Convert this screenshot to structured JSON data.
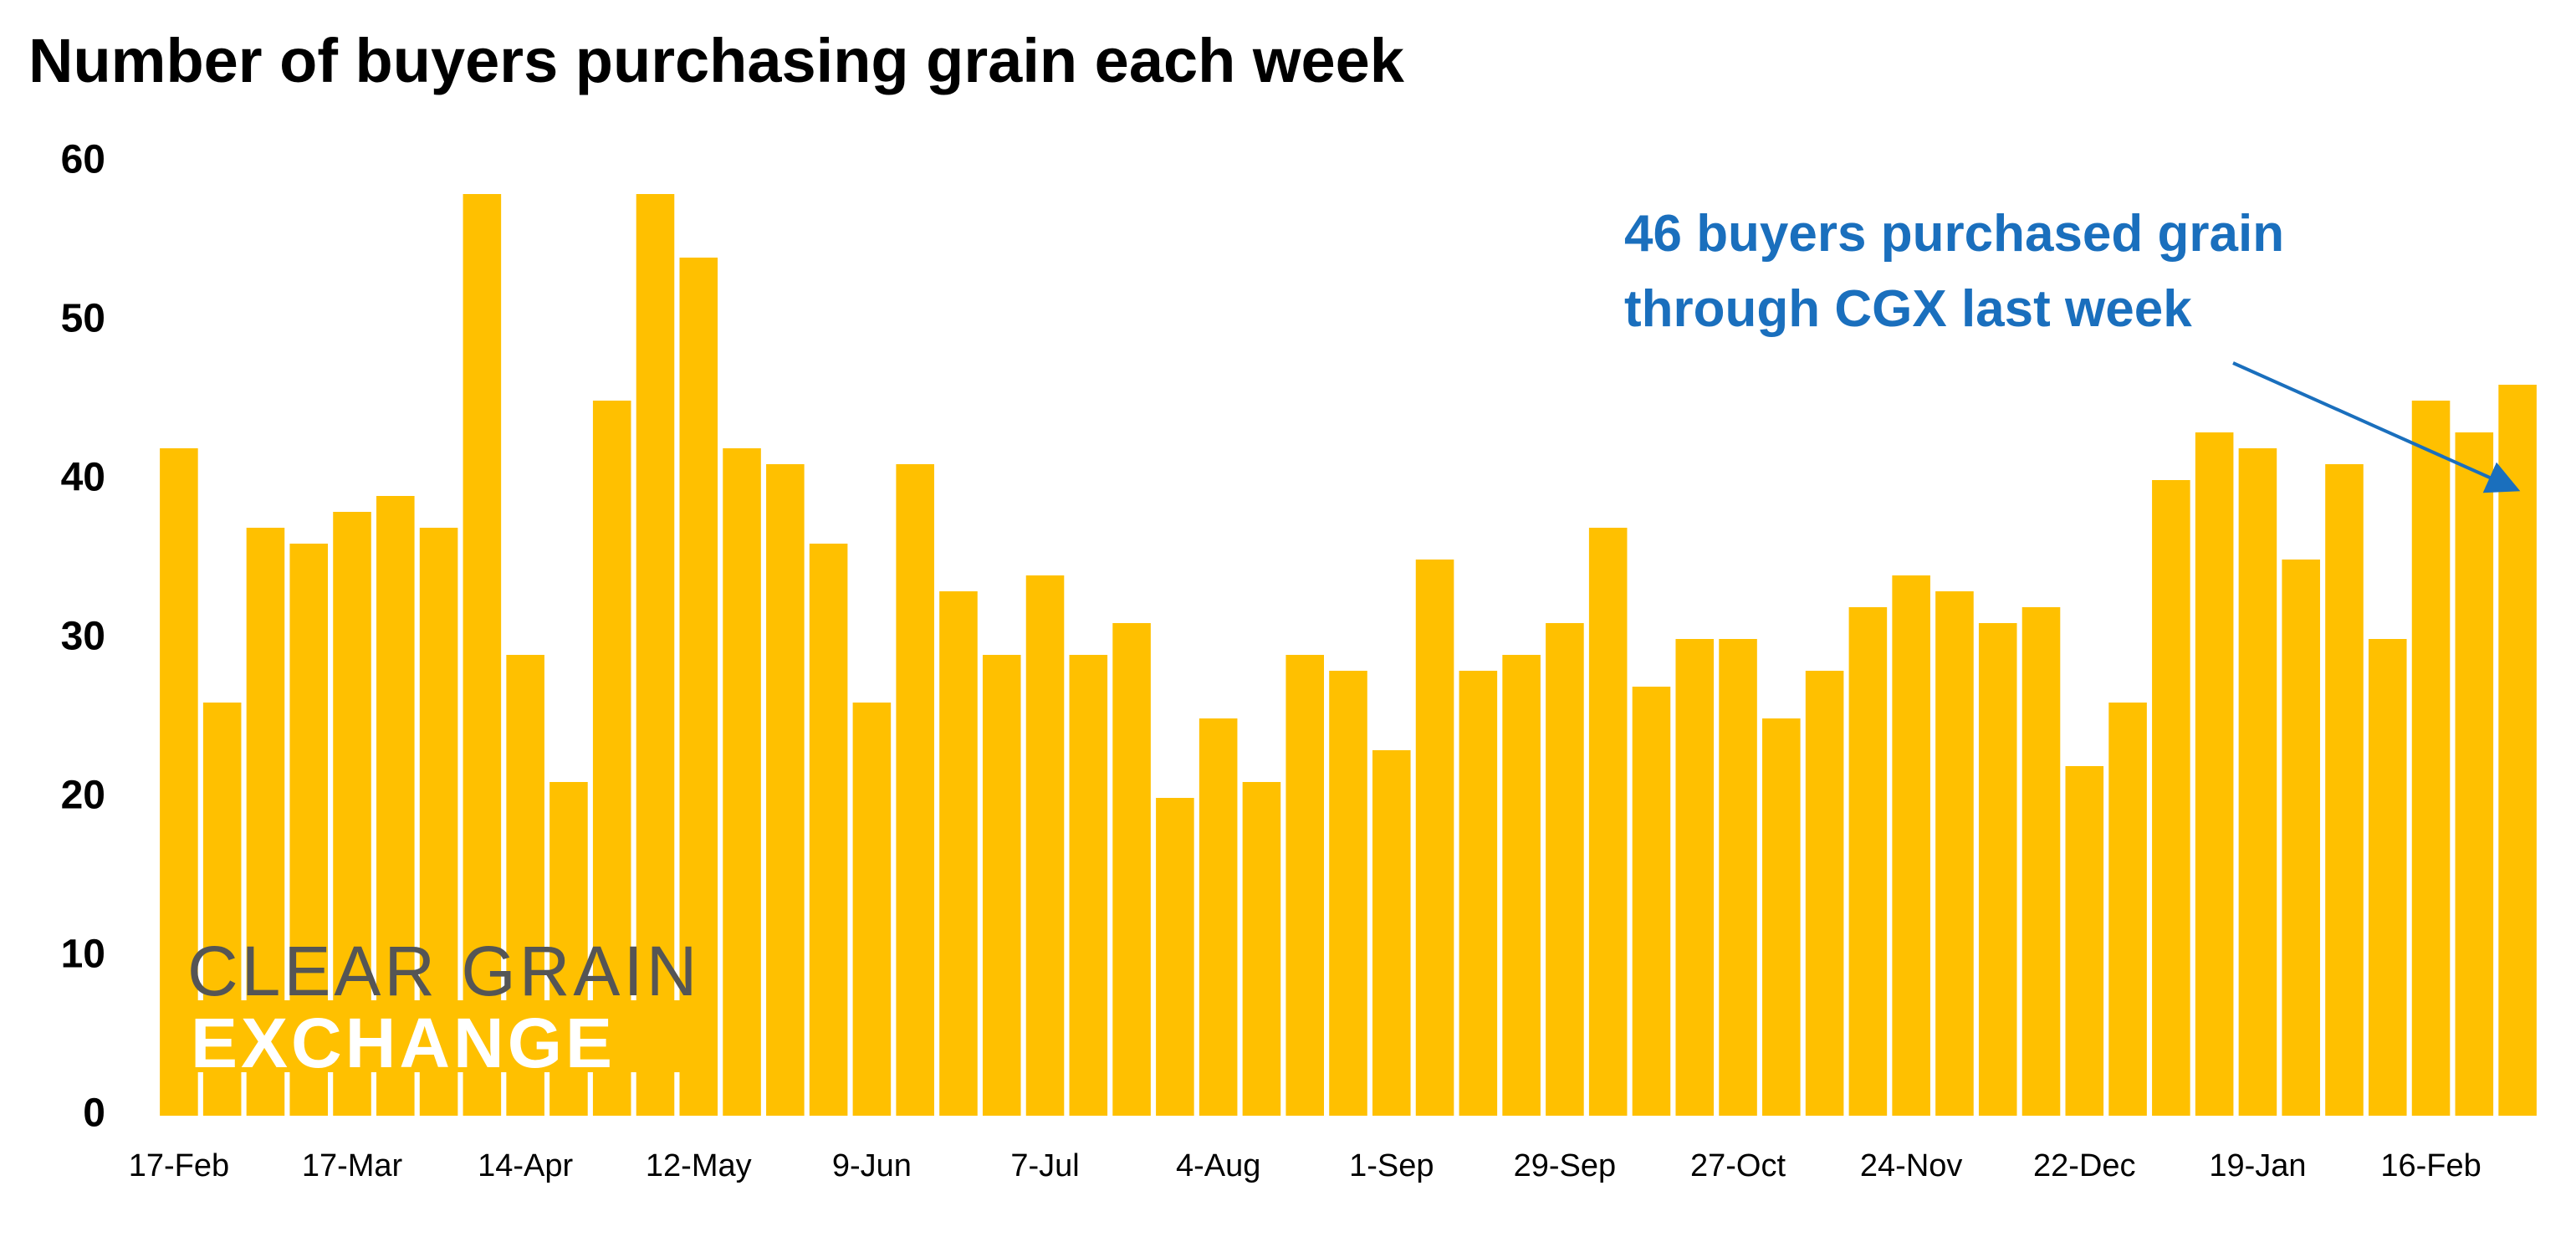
{
  "chart_data": {
    "type": "bar",
    "title": "Number of buyers purchasing grain each week",
    "categories": [
      "17-Feb",
      null,
      null,
      null,
      "17-Mar",
      null,
      null,
      null,
      "14-Apr",
      null,
      null,
      null,
      "12-May",
      null,
      null,
      null,
      "9-Jun",
      null,
      null,
      null,
      "7-Jul",
      null,
      null,
      null,
      "4-Aug",
      null,
      null,
      null,
      "1-Sep",
      null,
      null,
      null,
      "29-Sep",
      null,
      null,
      null,
      "27-Oct",
      null,
      null,
      null,
      "24-Nov",
      null,
      null,
      null,
      "22-Dec",
      null,
      null,
      null,
      "19-Jan",
      null,
      null,
      null,
      "16-Feb",
      null,
      null
    ],
    "values": [
      42,
      26,
      37,
      36,
      38,
      39,
      37,
      58,
      29,
      21,
      45,
      58,
      54,
      42,
      41,
      36,
      26,
      41,
      33,
      29,
      34,
      29,
      31,
      20,
      25,
      21,
      29,
      28,
      23,
      35,
      28,
      29,
      31,
      37,
      27,
      30,
      30,
      25,
      28,
      32,
      34,
      33,
      31,
      32,
      22,
      26,
      40,
      43,
      42,
      35,
      41,
      30,
      45,
      43,
      46
    ],
    "color": "#FFC000",
    "ylim": [
      0,
      60
    ],
    "yticks": [
      0,
      10,
      20,
      30,
      40,
      50,
      60
    ],
    "grid": false,
    "annotation": [
      "46 buyers purchased grain",
      "through CGX last week"
    ],
    "annotation_color": "#1a6fbd",
    "logo": [
      "CLEAR GRAIN",
      "EXCHANGE"
    ]
  }
}
